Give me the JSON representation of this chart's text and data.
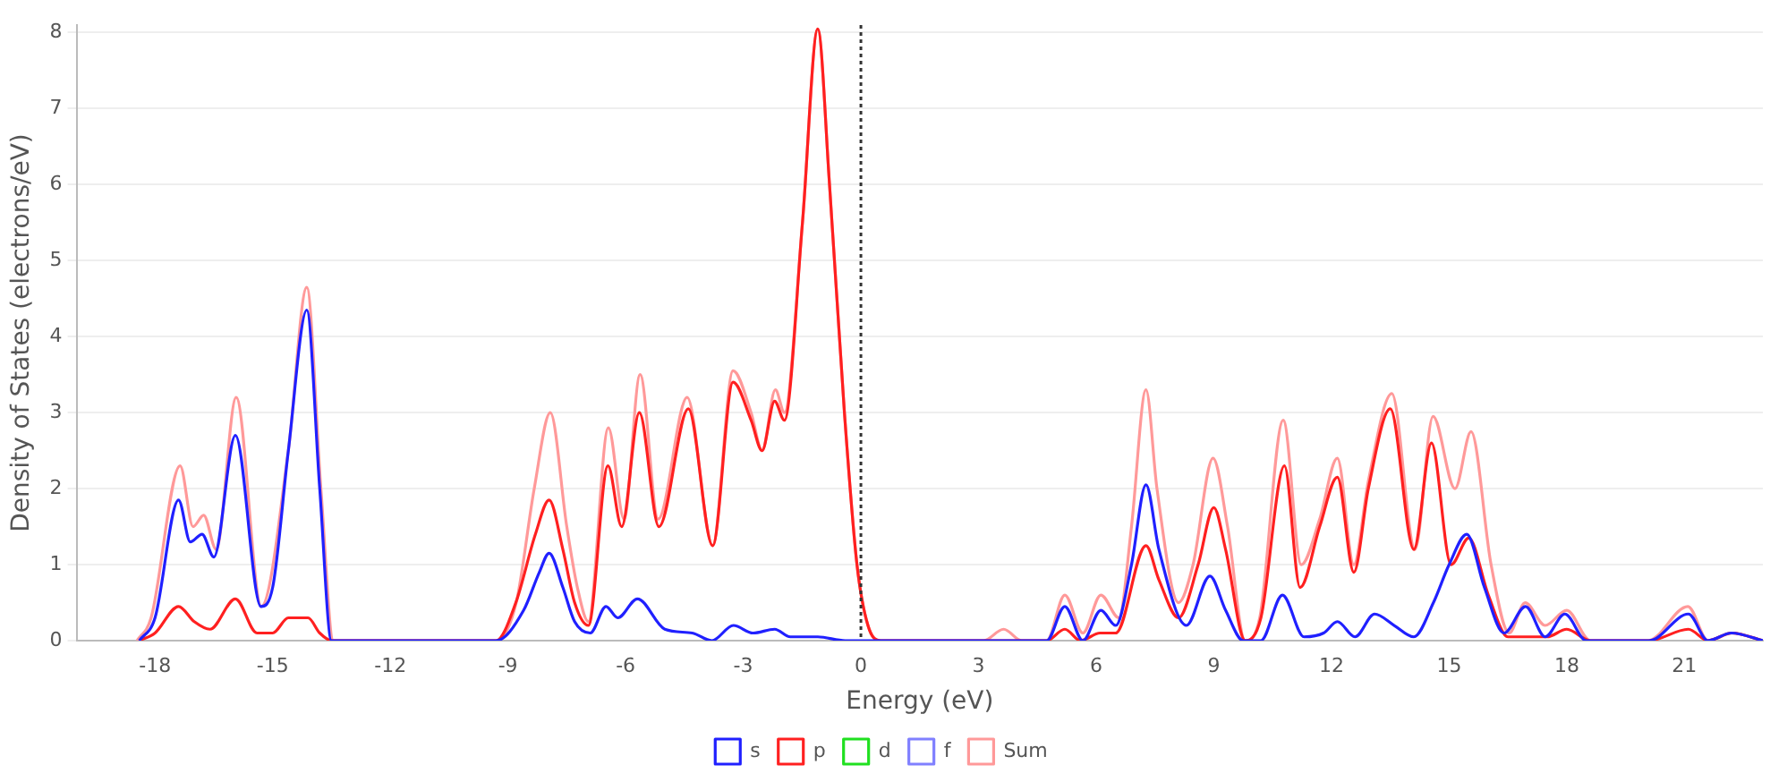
{
  "chart_data": {
    "type": "line",
    "xlabel": "Energy (eV)",
    "ylabel": "Density of States (electrons/eV)",
    "xlim": [
      -20,
      23
    ],
    "xticks": [
      -18,
      -15,
      -12,
      -9,
      -6,
      -3,
      0,
      3,
      6,
      9,
      12,
      15,
      18,
      21
    ],
    "ylim": [
      0,
      8.1
    ],
    "yticks": [
      0,
      1,
      2,
      3,
      4,
      5,
      6,
      7,
      8
    ],
    "grid": "y",
    "legend": "bottom",
    "marker": "none",
    "line_style": "solid",
    "ref_lines": [
      {
        "axis": "x",
        "value": 0,
        "color": "#333333",
        "line_style": "dotted"
      }
    ],
    "series": [
      {
        "name": "s",
        "color": "#2020ff",
        "x": [
          -18.4,
          -18.0,
          -17.4,
          -17.1,
          -16.8,
          -16.5,
          -15.95,
          -15.3,
          -15.0,
          -14.6,
          -14.13,
          -13.8,
          -13.5,
          -9.3,
          -8.6,
          -8.2,
          -7.95,
          -7.6,
          -7.3,
          -6.9,
          -6.5,
          -6.2,
          -5.7,
          -5.0,
          -4.3,
          -3.8,
          -3.25,
          -2.75,
          -2.2,
          -1.8,
          -1.1,
          -0.4,
          4.74,
          5.2,
          5.66,
          6.12,
          6.5,
          6.9,
          7.27,
          7.6,
          8.3,
          8.9,
          9.3,
          9.75,
          10.2,
          10.75,
          11.3,
          11.8,
          12.15,
          12.6,
          13.1,
          13.6,
          14.1,
          14.6,
          15.0,
          15.45,
          15.9,
          16.4,
          16.95,
          17.45,
          17.95,
          18.5,
          20.1,
          21.1,
          21.6,
          22.2,
          23
        ],
        "values": [
          0,
          0.3,
          1.85,
          1.3,
          1.4,
          1.1,
          2.7,
          0.45,
          0.7,
          2.5,
          4.35,
          2,
          0,
          0,
          0.4,
          0.9,
          1.15,
          0.7,
          0.25,
          0.1,
          0.45,
          0.3,
          0.55,
          0.15,
          0.1,
          0,
          0.2,
          0.1,
          0.15,
          0.05,
          0.05,
          0,
          0,
          0.45,
          0,
          0.4,
          0.2,
          1.0,
          2.05,
          1.2,
          0.2,
          0.85,
          0.4,
          0,
          0,
          0.6,
          0.05,
          0.1,
          0.25,
          0.05,
          0.35,
          0.2,
          0.05,
          0.5,
          1.0,
          1.4,
          0.7,
          0.1,
          0.45,
          0.05,
          0.35,
          0,
          0,
          0.35,
          0,
          0.1,
          0
        ]
      },
      {
        "name": "p",
        "color": "#ff2020",
        "x": [
          -18.4,
          -18.0,
          -17.4,
          -17.0,
          -16.6,
          -15.95,
          -15.4,
          -15.0,
          -14.6,
          -14.1,
          -13.8,
          -13.5,
          -9.3,
          -8.8,
          -8.3,
          -7.95,
          -7.6,
          -7.3,
          -6.95,
          -6.45,
          -6.1,
          -5.65,
          -5.15,
          -4.4,
          -3.78,
          -3.26,
          -2.8,
          -2.52,
          -2.2,
          -1.95,
          -1.49,
          -1.1,
          -0.8,
          -0.42,
          -0.1,
          0.18,
          0.5,
          4.74,
          5.2,
          5.6,
          6.1,
          6.5,
          7.27,
          7.6,
          8.1,
          8.6,
          9.0,
          9.3,
          9.8,
          10.2,
          10.8,
          11.2,
          11.7,
          12.15,
          12.57,
          12.94,
          13.5,
          14.1,
          14.55,
          15.05,
          15.5,
          16.0,
          16.5,
          17.5,
          18.0,
          18.6,
          20.1,
          21.1,
          21.6,
          22.2,
          23
        ],
        "values": [
          0,
          0.1,
          0.45,
          0.25,
          0.15,
          0.55,
          0.1,
          0.1,
          0.3,
          0.3,
          0.1,
          0,
          0,
          0.5,
          1.4,
          1.85,
          1.2,
          0.5,
          0.2,
          2.3,
          1.5,
          3.0,
          1.5,
          3.05,
          1.25,
          3.4,
          2.9,
          2.5,
          3.15,
          2.9,
          5.5,
          8.05,
          6,
          3,
          1,
          0.2,
          0,
          0,
          0.15,
          0,
          0.1,
          0.1,
          1.25,
          0.8,
          0.3,
          1.0,
          1.75,
          1.2,
          0,
          0.3,
          2.3,
          0.7,
          1.5,
          2.15,
          0.9,
          2.0,
          3.05,
          1.2,
          2.6,
          1.0,
          1.35,
          0.6,
          0.05,
          0.05,
          0.15,
          0,
          0,
          0.15,
          0,
          0.1,
          0
        ]
      },
      {
        "name": "d",
        "color": "#20e020"
      },
      {
        "name": "f",
        "color": "#8080ff"
      },
      {
        "name": "Sum",
        "color": "#ff9999",
        "x": [
          -18.46,
          -18.1,
          -17.36,
          -17.03,
          -16.76,
          -16.44,
          -15.93,
          -15.29,
          -14.6,
          -14.13,
          -13.77,
          -13.45,
          -9.3,
          -8.79,
          -8.33,
          -7.92,
          -7.5,
          -7.23,
          -6.95,
          -6.44,
          -6.04,
          -5.63,
          -5.17,
          -4.43,
          -3.78,
          -3.26,
          -2.8,
          -2.52,
          -2.18,
          -1.95,
          -1.49,
          -1.1,
          -0.8,
          -0.42,
          -0.1,
          0.18,
          0.5,
          3.13,
          3.64,
          4.1,
          4.74,
          5.2,
          5.66,
          6.12,
          6.58,
          6.9,
          7.27,
          7.55,
          8.1,
          8.47,
          8.98,
          9.35,
          9.8,
          10.17,
          10.77,
          11.23,
          11.7,
          12.15,
          12.57,
          12.94,
          13.54,
          14.13,
          14.59,
          15.15,
          15.56,
          16.07,
          16.53,
          16.94,
          17.45,
          18.0,
          18.6,
          20.07,
          21.09,
          21.6,
          22.24,
          23
        ],
        "values": [
          0,
          0.3,
          2.3,
          1.5,
          1.65,
          1.2,
          3.2,
          0.45,
          2.5,
          4.65,
          2,
          0,
          0,
          0.5,
          2,
          3.0,
          1.5,
          0.7,
          0.25,
          2.8,
          1.6,
          3.5,
          1.6,
          3.2,
          1.25,
          3.55,
          3.0,
          2.5,
          3.3,
          3.0,
          5.5,
          8.05,
          6,
          3,
          1,
          0.2,
          0,
          0,
          0.15,
          0,
          0,
          0.6,
          0.1,
          0.6,
          0.3,
          1.5,
          3.3,
          2,
          0.5,
          1,
          2.4,
          1.5,
          0,
          0.3,
          2.9,
          1,
          1.6,
          2.4,
          1,
          2.1,
          3.25,
          1.2,
          2.95,
          2.0,
          2.75,
          1,
          0.1,
          0.5,
          0.2,
          0.4,
          0,
          0,
          0.45,
          0,
          0.1,
          0
        ]
      }
    ]
  }
}
